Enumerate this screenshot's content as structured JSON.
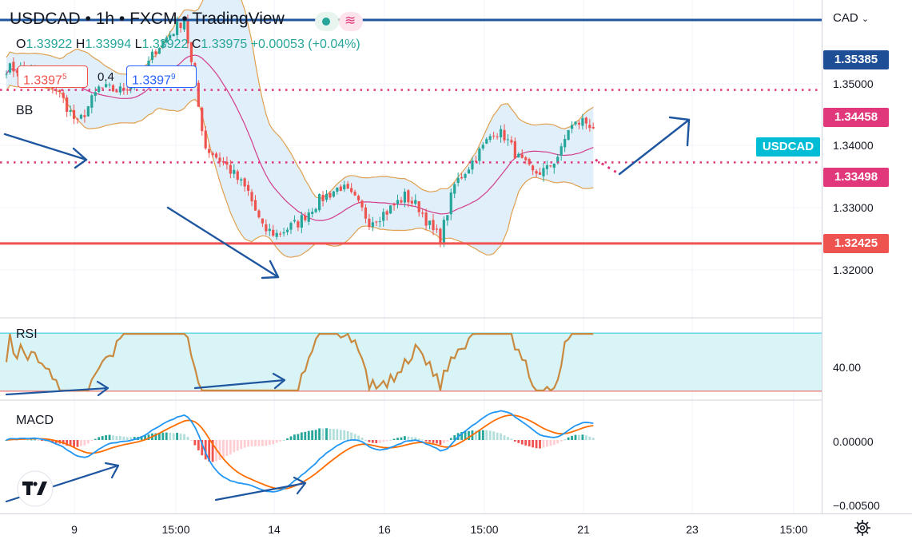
{
  "header": {
    "title": "USDCAD • 1h • FXCM • TradingView",
    "ohlc": {
      "o_label": "O",
      "o_value": "1.33922",
      "h_label": "H",
      "h_value": "1.33994",
      "l_label": "L",
      "l_value": "1.33922",
      "c_label": "C",
      "c_value": "1.33975",
      "change": "+0.00053 (+0.04%)"
    },
    "sell_price_main": "1.3397",
    "sell_price_sup": "5",
    "spread": "0.4",
    "buy_price_main": "1.3397",
    "buy_price_sup": "9",
    "currency": "CAD"
  },
  "colors": {
    "green": "#26a69a",
    "red": "#ef5350",
    "blue": "#1e56a0",
    "magenta": "#e0387a",
    "bb_band": "#e0a050",
    "bb_mid": "#d23c8c",
    "bb_fill": "#dcecf9",
    "rsi_line": "#c98a3f",
    "rsi_fill": "#d9f4f6",
    "macd": "#2196f3",
    "signal": "#ff6d00",
    "symbol_tag": "#00bcd4"
  },
  "price_axis": {
    "ticks": [
      "1.35000",
      "1.34000",
      "1.33000",
      "1.32000"
    ],
    "tags": {
      "top_blue": "1.35385",
      "upper_dotted": "1.34458",
      "lower_dotted": "1.33498",
      "support_red": "1.32425",
      "symbol": "USDCAD"
    }
  },
  "panels": {
    "bb_label": "BB",
    "rsi_label": "RSI",
    "rsi_tick": "40.00",
    "macd_label": "MACD",
    "macd_ticks": [
      "0.00000",
      "−0.00500"
    ]
  },
  "time_axis": [
    "9",
    "15:00",
    "14",
    "16",
    "15:00",
    "21",
    "23",
    "15:00"
  ],
  "icons": {
    "toggle": "indicator-toggle-icon",
    "wave": "approx-wave-icon",
    "settings": "gear-icon",
    "logo": "tradingview-logo-icon"
  },
  "chart_data": {
    "type": "candlestick",
    "symbol": "USDCAD",
    "timeframe": "1h",
    "y_range": [
      1.3145,
      1.3565
    ],
    "levels": {
      "resistance_blue": 1.35385,
      "resistance_dotted": 1.34458,
      "support_dotted": 1.33498,
      "support_red": 1.32425
    },
    "price_waypoints": [
      [
        0,
        1.3475
      ],
      [
        8,
        1.347
      ],
      [
        14,
        1.3448
      ],
      [
        20,
        1.34
      ],
      [
        26,
        1.3448
      ],
      [
        32,
        1.3445
      ],
      [
        38,
        1.3462
      ],
      [
        42,
        1.35
      ],
      [
        46,
        1.352
      ],
      [
        50,
        1.354
      ],
      [
        53,
        1.345
      ],
      [
        56,
        1.337
      ],
      [
        62,
        1.3345
      ],
      [
        68,
        1.331
      ],
      [
        72,
        1.3262
      ],
      [
        76,
        1.3255
      ],
      [
        82,
        1.327
      ],
      [
        88,
        1.33
      ],
      [
        94,
        1.3318
      ],
      [
        98,
        1.33
      ],
      [
        102,
        1.3272
      ],
      [
        107,
        1.3285
      ],
      [
        112,
        1.3305
      ],
      [
        116,
        1.329
      ],
      [
        120,
        1.3258
      ],
      [
        122,
        1.325
      ],
      [
        126,
        1.332
      ],
      [
        130,
        1.3345
      ],
      [
        134,
        1.337
      ],
      [
        137,
        1.3392
      ],
      [
        140,
        1.3385
      ],
      [
        144,
        1.3355
      ],
      [
        148,
        1.3335
      ],
      [
        152,
        1.334
      ],
      [
        156,
        1.3365
      ],
      [
        158,
        1.3395
      ],
      [
        162,
        1.3405
      ],
      [
        165,
        1.3398
      ]
    ],
    "rsi": {
      "ticks": [
        40.0
      ],
      "range": [
        25,
        80
      ],
      "band": [
        30,
        70
      ]
    },
    "macd": {
      "ticks": [
        0.0,
        -0.005
      ],
      "range": [
        -0.0065,
        0.0035
      ]
    }
  }
}
